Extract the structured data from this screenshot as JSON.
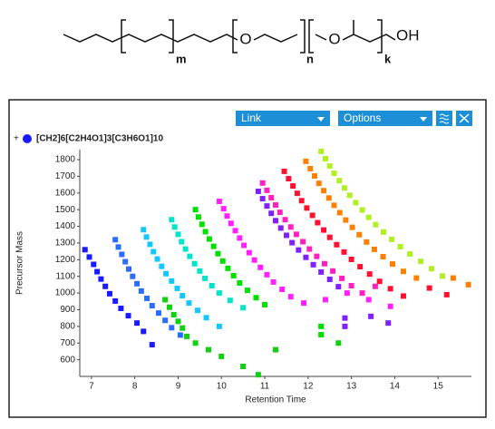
{
  "structure": {
    "oxygen_1": "O",
    "oxygen_2": "O",
    "hydroxyl": "OH",
    "m": "m",
    "n": "n",
    "k": "k"
  },
  "toolbar": {
    "link": "Link",
    "options": "Options"
  },
  "chart_data": {
    "type": "scatter",
    "legend_label": "[CH2]6[C2H4O1]3[C3H6O1]10",
    "legend_color": "#1a1aff",
    "x_label": "Retention Time",
    "y_label": "Precursor Mass",
    "xlim": [
      6.73,
      15.77
    ],
    "ylim": [
      500,
      1860
    ],
    "xticks": [
      7,
      8,
      9,
      10,
      11,
      12,
      13,
      14,
      15
    ],
    "yticks": [
      600,
      700,
      800,
      900,
      1000,
      1100,
      1200,
      1300,
      1400,
      1500,
      1600,
      1700,
      1800
    ],
    "grid": false,
    "series": [
      {
        "color": "#1a1aff",
        "x": [
          6.85,
          6.95,
          7.05,
          7.13,
          7.22,
          7.32,
          7.42,
          7.55,
          7.68,
          7.85,
          8.05,
          8.2,
          8.4
        ],
        "values": [
          1260,
          1216,
          1172,
          1128,
          1084,
          1040,
          996,
          952,
          908,
          864,
          820,
          770,
          690
        ]
      },
      {
        "color": "#2a6cff",
        "x": [
          7.55,
          7.62,
          7.7,
          7.78,
          7.86,
          7.95,
          8.05,
          8.15,
          8.28,
          8.4,
          8.55,
          8.7,
          8.85,
          9.05
        ],
        "values": [
          1320,
          1276,
          1232,
          1188,
          1144,
          1100,
          1056,
          1012,
          968,
          924,
          880,
          836,
          792,
          748
        ]
      },
      {
        "color": "#14c8ff",
        "x": [
          8.2,
          8.27,
          8.35,
          8.43,
          8.52,
          8.62,
          8.72,
          8.85,
          8.98,
          9.1,
          9.25,
          9.45,
          9.65,
          9.95
        ],
        "values": [
          1380,
          1336,
          1292,
          1248,
          1204,
          1160,
          1116,
          1072,
          1028,
          984,
          940,
          896,
          852,
          800
        ]
      },
      {
        "color": "#00e5c8",
        "x": [
          8.85,
          8.92,
          9.0,
          9.08,
          9.17,
          9.27,
          9.38,
          9.5,
          9.62,
          9.78,
          9.95,
          10.2,
          10.5
        ],
        "values": [
          1440,
          1396,
          1352,
          1308,
          1264,
          1220,
          1176,
          1132,
          1088,
          1044,
          1000,
          956,
          912
        ]
      },
      {
        "color": "#00e000",
        "x": [
          9.4,
          9.47,
          9.55,
          9.63,
          9.72,
          9.82,
          9.92,
          10.03,
          10.15,
          10.28,
          10.42,
          10.6,
          10.8,
          11.0,
          12.3,
          12.3
        ],
        "values": [
          1500,
          1456,
          1412,
          1368,
          1324,
          1280,
          1236,
          1192,
          1148,
          1104,
          1060,
          1016,
          972,
          930,
          800,
          750
        ]
      },
      {
        "color": "#10d010",
        "x": [
          8.7,
          8.8,
          8.9,
          9.0,
          9.1,
          9.2,
          9.4,
          9.7,
          10.0,
          10.5,
          10.85,
          11.25,
          12.7
        ],
        "values": [
          960,
          915,
          870,
          830,
          790,
          740,
          700,
          660,
          620,
          560,
          510,
          660,
          700
        ]
      },
      {
        "color": "#8020ff",
        "x": [
          10.85,
          10.95,
          11.05,
          11.15,
          11.25,
          11.37,
          11.5,
          11.63,
          11.78,
          11.95,
          12.12,
          12.3,
          12.5,
          12.7,
          12.85,
          12.85,
          13.45,
          13.85
        ],
        "values": [
          1610,
          1566,
          1522,
          1478,
          1434,
          1390,
          1346,
          1302,
          1258,
          1214,
          1170,
          1126,
          1082,
          1038,
          850,
          800,
          860,
          820
        ]
      },
      {
        "color": "#ff20ff",
        "x": [
          9.95,
          10.05,
          10.13,
          10.22,
          10.32,
          10.42,
          10.52,
          10.64,
          10.76,
          10.9,
          11.05,
          11.2,
          11.4,
          11.6,
          11.9,
          12.4,
          12.9,
          13.4,
          13.9
        ],
        "values": [
          1550,
          1506,
          1462,
          1418,
          1374,
          1330,
          1286,
          1242,
          1198,
          1154,
          1110,
          1066,
          1022,
          978,
          940,
          960,
          1000,
          960,
          920
        ]
      },
      {
        "color": "#ff20c0",
        "x": [
          10.95,
          11.05,
          11.15,
          11.25,
          11.35,
          11.47,
          11.6,
          11.73,
          11.88,
          12.03,
          12.2,
          12.38,
          12.57,
          12.78,
          13.0,
          13.25,
          13.55
        ],
        "values": [
          1660,
          1616,
          1572,
          1528,
          1484,
          1440,
          1396,
          1352,
          1308,
          1264,
          1220,
          1176,
          1132,
          1088,
          1044,
          1000,
          1040
        ]
      },
      {
        "color": "#ff1030",
        "x": [
          11.45,
          11.55,
          11.65,
          11.75,
          11.85,
          11.97,
          12.1,
          12.22,
          12.36,
          12.5,
          12.66,
          12.83,
          13.0,
          13.2,
          13.42,
          13.65,
          13.9,
          14.2,
          14.8,
          15.2
        ],
        "values": [
          1730,
          1686,
          1642,
          1598,
          1554,
          1510,
          1466,
          1422,
          1378,
          1334,
          1290,
          1246,
          1202,
          1158,
          1114,
          1070,
          1026,
          982,
          1030,
          990
        ]
      },
      {
        "color": "#ff8000",
        "x": [
          11.95,
          12.05,
          12.15,
          12.25,
          12.36,
          12.48,
          12.6,
          12.73,
          12.87,
          13.02,
          13.18,
          13.35,
          13.53,
          13.73,
          13.95,
          14.2,
          14.5,
          15.35,
          15.7
        ],
        "values": [
          1790,
          1746,
          1702,
          1658,
          1614,
          1570,
          1526,
          1482,
          1438,
          1394,
          1350,
          1306,
          1262,
          1218,
          1174,
          1130,
          1090,
          1090,
          1050
        ]
      },
      {
        "color": "#b0f020",
        "x": [
          12.3,
          12.4,
          12.5,
          12.6,
          12.72,
          12.84,
          12.96,
          13.1,
          13.25,
          13.4,
          13.56,
          13.74,
          13.93,
          14.13,
          14.35,
          14.6,
          14.85,
          15.1
        ],
        "values": [
          1850,
          1806,
          1762,
          1718,
          1674,
          1630,
          1586,
          1542,
          1498,
          1454,
          1410,
          1366,
          1322,
          1278,
          1234,
          1190,
          1146,
          1102
        ]
      }
    ]
  }
}
